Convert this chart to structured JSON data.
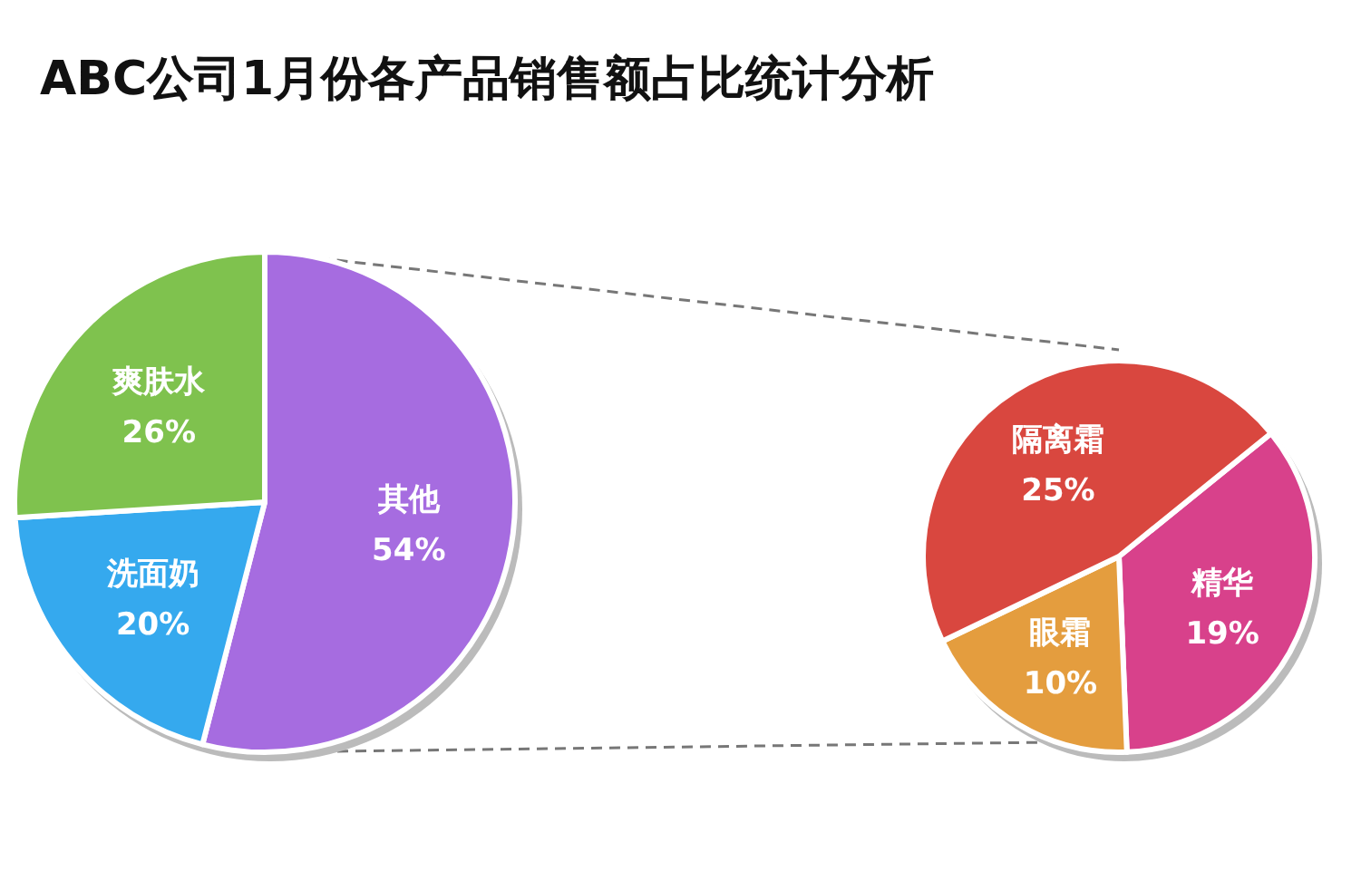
{
  "chart_data": [
    {
      "type": "pie",
      "title": "ABC公司1月份各产品销售额占比统计分析",
      "categories": [
        "其他",
        "洗面奶",
        "爽肤水"
      ],
      "values": [
        54,
        20,
        26
      ],
      "colors": [
        "#a66ce0",
        "#35a9ee",
        "#7fc24e"
      ],
      "value_labels": [
        "54%",
        "20%",
        "26%"
      ]
    },
    {
      "type": "pie",
      "categories": [
        "精华",
        "眼霜",
        "隔离霜"
      ],
      "values": [
        19,
        10,
        25
      ],
      "colors": [
        "#d8418b",
        "#e49d3e",
        "#d9473f"
      ],
      "value_labels": [
        "19%",
        "10%",
        "25%"
      ]
    }
  ]
}
